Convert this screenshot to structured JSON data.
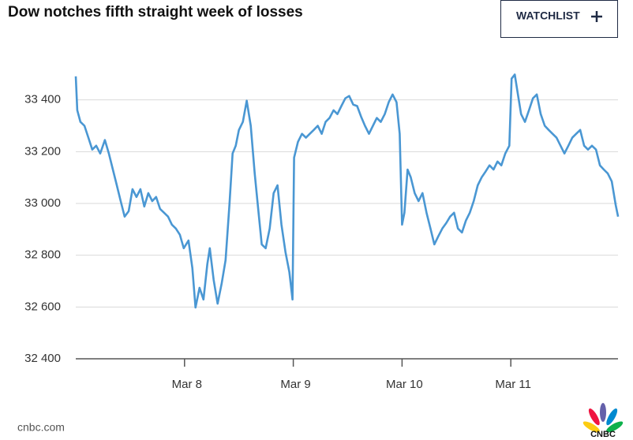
{
  "chart_data": {
    "type": "line",
    "title": "Dow notches fifth straight week of losses",
    "xlim": [
      7,
      12
    ],
    "xticks": [
      {
        "value": 8,
        "label": "Mar 8"
      },
      {
        "value": 9,
        "label": "Mar 9"
      },
      {
        "value": 10,
        "label": "Mar 10"
      },
      {
        "value": 11,
        "label": "Mar 11"
      }
    ],
    "ylim": [
      32400,
      33600
    ],
    "yticks": [
      {
        "value": 32400,
        "label": "32 400"
      },
      {
        "value": 32600,
        "label": "32 600"
      },
      {
        "value": 32800,
        "label": "32 800"
      },
      {
        "value": 33000,
        "label": "33 000"
      },
      {
        "value": 33200,
        "label": "33 200"
      },
      {
        "value": 33400,
        "label": "33 400"
      }
    ],
    "grid": true,
    "x": [
      7.0,
      7.014,
      7.043,
      7.08,
      7.116,
      7.152,
      7.188,
      7.225,
      7.268,
      7.304,
      7.341,
      7.377,
      7.413,
      7.449,
      7.486,
      7.522,
      7.558,
      7.594,
      7.63,
      7.667,
      7.703,
      7.739,
      7.775,
      7.812,
      7.848,
      7.884,
      7.92,
      7.957,
      7.993,
      8.036,
      8.072,
      8.101,
      8.138,
      8.174,
      8.21,
      8.232,
      8.268,
      8.304,
      8.341,
      8.377,
      8.413,
      8.442,
      8.471,
      8.5,
      8.536,
      8.572,
      8.609,
      8.645,
      8.681,
      8.71,
      8.746,
      8.783,
      8.819,
      8.855,
      8.891,
      8.928,
      8.964,
      8.993,
      9.007,
      9.043,
      9.08,
      9.116,
      9.152,
      9.188,
      9.225,
      9.261,
      9.297,
      9.333,
      9.37,
      9.406,
      9.442,
      9.478,
      9.514,
      9.551,
      9.587,
      9.623,
      9.659,
      9.696,
      9.732,
      9.768,
      9.804,
      9.841,
      9.877,
      9.913,
      9.949,
      9.978,
      10.0,
      10.022,
      10.051,
      10.08,
      10.116,
      10.152,
      10.188,
      10.225,
      10.261,
      10.297,
      10.333,
      10.37,
      10.406,
      10.442,
      10.478,
      10.514,
      10.551,
      10.587,
      10.623,
      10.659,
      10.696,
      10.732,
      10.768,
      10.804,
      10.841,
      10.877,
      10.913,
      10.949,
      10.986,
      11.007,
      11.036,
      11.065,
      11.094,
      11.13,
      11.167,
      11.203,
      11.239,
      11.275,
      11.312,
      11.348,
      11.384,
      11.42,
      11.457,
      11.493,
      11.529,
      11.565,
      11.601,
      11.638,
      11.674,
      11.71,
      11.746,
      11.783,
      11.819,
      11.855,
      11.891,
      11.928,
      11.964,
      11.986
    ],
    "series": [
      {
        "color": "#4a97d3",
        "values": [
          33491,
          33360,
          33315,
          33300,
          33254,
          33208,
          33223,
          33193,
          33245,
          33193,
          33131,
          33070,
          33009,
          32949,
          32970,
          33055,
          33025,
          33055,
          32988,
          33040,
          33009,
          33025,
          32979,
          32964,
          32949,
          32918,
          32903,
          32879,
          32827,
          32857,
          32751,
          32598,
          32674,
          32629,
          32766,
          32827,
          32705,
          32613,
          32690,
          32781,
          32995,
          33193,
          33223,
          33284,
          33315,
          33397,
          33300,
          33116,
          32964,
          32842,
          32827,
          32903,
          33040,
          33070,
          32918,
          32812,
          32735,
          32629,
          33177,
          33238,
          33269,
          33254,
          33269,
          33284,
          33300,
          33269,
          33315,
          33330,
          33360,
          33345,
          33376,
          33406,
          33415,
          33382,
          33376,
          33336,
          33300,
          33269,
          33300,
          33330,
          33315,
          33345,
          33391,
          33421,
          33391,
          33269,
          32918,
          32964,
          33131,
          33101,
          33040,
          33009,
          33040,
          32964,
          32903,
          32842,
          32873,
          32903,
          32924,
          32949,
          32964,
          32903,
          32888,
          32934,
          32964,
          33009,
          33070,
          33101,
          33123,
          33147,
          33131,
          33162,
          33147,
          33193,
          33223,
          33482,
          33498,
          33421,
          33345,
          33315,
          33360,
          33406,
          33421,
          33345,
          33300,
          33284,
          33269,
          33254,
          33223,
          33193,
          33223,
          33254,
          33269,
          33284,
          33223,
          33208,
          33223,
          33208,
          33147,
          33131,
          33116,
          33085,
          32995,
          32949
        ]
      }
    ]
  },
  "header": {
    "button": "WATCHLIST"
  },
  "footer": {
    "source": "cnbc.com",
    "logo": "CNBC"
  }
}
